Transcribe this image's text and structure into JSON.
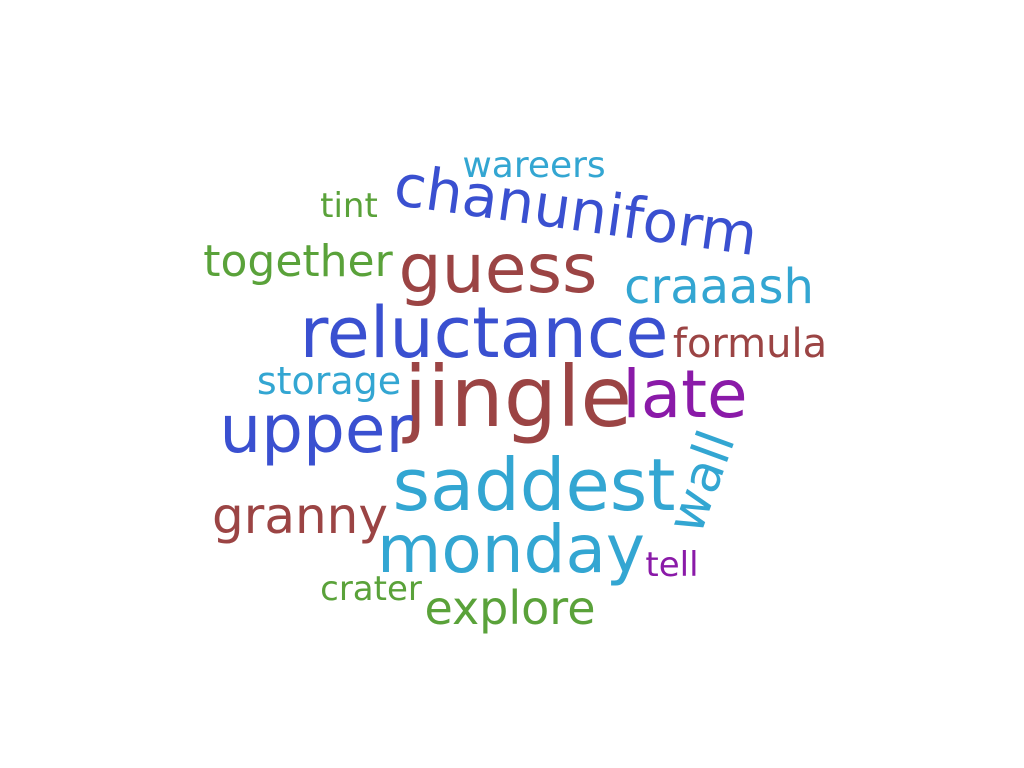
{
  "colors": {
    "blue": "#3a50d0",
    "brown": "#9b4444",
    "cyan": "#33a6d2",
    "green": "#5aa23a",
    "purple": "#8a1aa8"
  },
  "words": [
    {
      "id": "wareers",
      "text": "wareers",
      "color": "cyan"
    },
    {
      "id": "chanuniform",
      "text": "chanuniform",
      "color": "blue"
    },
    {
      "id": "tint",
      "text": "tint",
      "color": "green"
    },
    {
      "id": "together",
      "text": "together",
      "color": "green"
    },
    {
      "id": "guess",
      "text": "guess",
      "color": "brown"
    },
    {
      "id": "craaash",
      "text": "craaash",
      "color": "cyan"
    },
    {
      "id": "reluctance",
      "text": "reluctance",
      "color": "blue"
    },
    {
      "id": "formula",
      "text": "formula",
      "color": "brown"
    },
    {
      "id": "storage",
      "text": "storage",
      "color": "cyan"
    },
    {
      "id": "jingle",
      "text": "jingle",
      "color": "brown"
    },
    {
      "id": "late",
      "text": "late",
      "color": "purple"
    },
    {
      "id": "upper",
      "text": "upper",
      "color": "blue"
    },
    {
      "id": "wall",
      "text": "wall",
      "color": "cyan"
    },
    {
      "id": "saddest",
      "text": "saddest",
      "color": "cyan"
    },
    {
      "id": "granny",
      "text": "granny",
      "color": "brown"
    },
    {
      "id": "monday",
      "text": "monday",
      "color": "cyan"
    },
    {
      "id": "tell",
      "text": "tell",
      "color": "purple"
    },
    {
      "id": "crater",
      "text": "crater",
      "color": "green"
    },
    {
      "id": "explore",
      "text": "explore",
      "color": "green"
    }
  ]
}
